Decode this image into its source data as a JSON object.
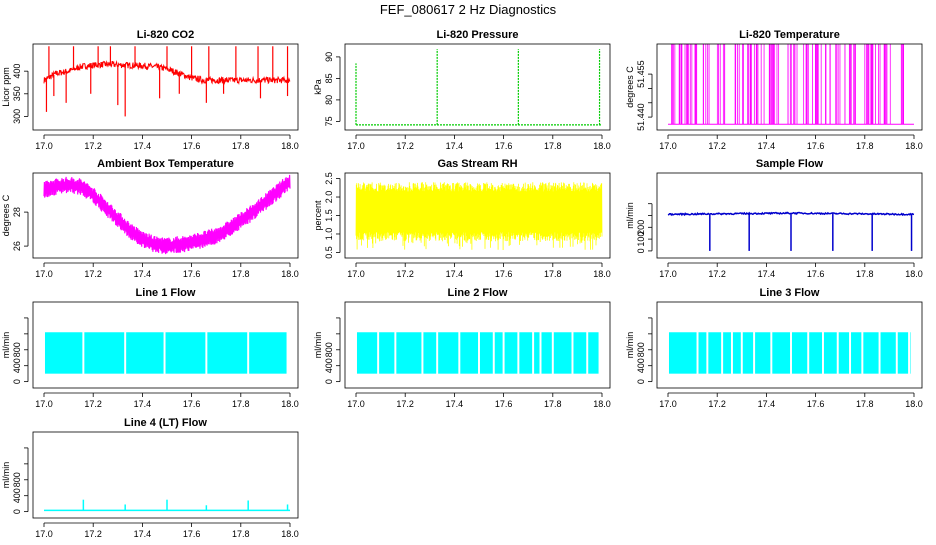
{
  "page_title": "FEF_080617  2 Hz Diagnostics",
  "chart_data": [
    {
      "id": "li820-co2",
      "type": "line",
      "title": "Li-820 CO2",
      "xlabel": "",
      "ylabel": "Licor ppm",
      "xlim": [
        17.0,
        18.0
      ],
      "xticks": [
        "17.0",
        "17.2",
        "17.4",
        "17.6",
        "17.8",
        "18.0"
      ],
      "ylim": [
        270,
        460
      ],
      "yticks": [
        "300",
        "350",
        "400"
      ],
      "color": "#ff0000",
      "series": [
        {
          "x": [
            17.0,
            17.05,
            17.1,
            17.15,
            17.2,
            17.25,
            17.3,
            17.35,
            17.4,
            17.45,
            17.5,
            17.55,
            17.6,
            17.65,
            17.7,
            17.8,
            17.9,
            18.0
          ],
          "values": [
            380,
            395,
            400,
            410,
            413,
            415,
            414,
            413,
            412,
            410,
            405,
            395,
            385,
            380,
            380,
            380,
            380,
            380
          ]
        }
      ],
      "spike_x": [
        17.02,
        17.12,
        17.22,
        17.27,
        17.37,
        17.5,
        17.6,
        17.67,
        17.78,
        17.87,
        17.93,
        17.99
      ],
      "spike_to": 455,
      "dip_x": [
        17.01,
        17.04,
        17.09,
        17.19,
        17.3,
        17.33,
        17.47,
        17.55,
        17.66,
        17.73,
        17.88,
        17.99
      ],
      "dip_to": [
        310,
        345,
        330,
        350,
        325,
        300,
        340,
        350,
        330,
        350,
        340,
        345
      ]
    },
    {
      "id": "li820-pressure",
      "type": "line",
      "title": "Li-820 Pressure",
      "xlabel": "",
      "ylabel": "kPa",
      "xlim": [
        17.0,
        18.0
      ],
      "xticks": [
        "17.0",
        "17.2",
        "17.4",
        "17.6",
        "17.8",
        "18.0"
      ],
      "ylim": [
        73,
        93
      ],
      "yticks": [
        "75",
        "80",
        "85",
        "90"
      ],
      "color": "#00cc00",
      "series": [
        {
          "x": [
            17.0,
            18.0
          ],
          "values": [
            74.2,
            74.2
          ]
        }
      ],
      "spike_x": [
        17.0,
        17.33,
        17.66,
        17.99
      ],
      "spike_to": [
        88.5,
        91.8,
        91.8,
        91.8
      ]
    },
    {
      "id": "li820-temperature",
      "type": "line",
      "title": "Li-820 Temperature",
      "xlabel": "",
      "ylabel": "degrees C",
      "xlim": [
        17.0,
        18.0
      ],
      "xticks": [
        "17.0",
        "17.2",
        "17.4",
        "17.6",
        "17.8",
        "18.0"
      ],
      "ylim": [
        51.4355,
        51.4655
      ],
      "yticks": [
        "51.440",
        "51.445",
        "51.450",
        "51.455"
      ],
      "ytick_labels_shown": [
        "51.440",
        "",
        "",
        "51.455"
      ],
      "color": "#ff00ff",
      "baseline": 51.4375,
      "top": 51.4655,
      "toggle_segments": [
        [
          17.01,
          17.17
        ],
        [
          17.2,
          17.24
        ],
        [
          17.27,
          17.34
        ],
        [
          17.35,
          17.45
        ],
        [
          17.48,
          17.53
        ],
        [
          17.55,
          17.66
        ],
        [
          17.68,
          17.77
        ],
        [
          17.8,
          17.92
        ],
        [
          17.94,
          17.97
        ]
      ]
    },
    {
      "id": "ambient-box-temperature",
      "type": "line",
      "title": "Ambient Box Temperature",
      "xlabel": "",
      "ylabel": "degrees C",
      "xlim": [
        17.0,
        18.0
      ],
      "xticks": [
        "17.0",
        "17.2",
        "17.4",
        "17.6",
        "17.8",
        "18.0"
      ],
      "ylim": [
        25.3,
        30.3
      ],
      "yticks": [
        "26",
        "28"
      ],
      "ytick_labels_shown": [
        "26",
        "28"
      ],
      "extra_ytick": "29",
      "color": "#ff00ff",
      "series": [
        {
          "x": [
            17.0,
            17.05,
            17.1,
            17.15,
            17.2,
            17.25,
            17.3,
            17.35,
            17.4,
            17.45,
            17.5,
            17.55,
            17.6,
            17.65,
            17.7,
            17.75,
            17.8,
            17.85,
            17.9,
            17.95,
            18.0
          ],
          "values": [
            29.3,
            29.5,
            29.6,
            29.5,
            29.0,
            28.3,
            27.6,
            26.9,
            26.4,
            26.1,
            26.0,
            26.1,
            26.2,
            26.4,
            26.6,
            27.0,
            27.5,
            28.0,
            28.6,
            29.2,
            29.8
          ]
        }
      ],
      "band": 0.5
    },
    {
      "id": "gas-stream-rh",
      "type": "line",
      "title": "Gas Stream RH",
      "xlabel": "",
      "ylabel": "percent",
      "xlim": [
        17.0,
        18.0
      ],
      "xticks": [
        "17.0",
        "17.2",
        "17.4",
        "17.6",
        "17.8",
        "18.0"
      ],
      "ylim": [
        0.35,
        2.65
      ],
      "yticks": [
        "0.5",
        "1.0",
        "1.5",
        "2.0",
        "2.5"
      ],
      "color": "#ffff00",
      "band_low": 0.8,
      "band_high": 2.4
    },
    {
      "id": "sample-flow",
      "type": "line",
      "title": "Sample Flow",
      "xlabel": "",
      "ylabel": "ml/min",
      "xlim": [
        17.0,
        18.0
      ],
      "xticks": [
        "17.0",
        "17.2",
        "17.4",
        "17.6",
        "17.8",
        "18.0"
      ],
      "ylim": [
        -30,
        330
      ],
      "yticks": [
        "0",
        "50",
        "100",
        "150",
        "200"
      ],
      "ytick_labels_shown": [
        "0",
        "100",
        "200"
      ],
      "color": "#0000cc",
      "series": [
        {
          "x": [
            17.0,
            17.5,
            18.0
          ],
          "values": [
            155,
            160,
            155
          ]
        }
      ],
      "dip_x": [
        17.17,
        17.33,
        17.5,
        17.67,
        17.83,
        17.99
      ],
      "dip_to": 0
    },
    {
      "id": "line1-flow",
      "type": "line",
      "title": "Line 1 Flow",
      "xlabel": "",
      "ylabel": "ml/min",
      "xlim": [
        17.0,
        18.0
      ],
      "xticks": [
        "17.0",
        "17.2",
        "17.4",
        "17.6",
        "17.8",
        "18.0"
      ],
      "ylim": [
        -80,
        1000
      ],
      "yticks": [
        "0",
        "200",
        "400",
        "600",
        "800"
      ],
      "ytick_labels_shown": [
        "0",
        "400",
        "800"
      ],
      "color": "#00ffff",
      "band_low": 100,
      "band_high": 620,
      "gaps_x": [
        17.16,
        17.33,
        17.49,
        17.66,
        17.83
      ]
    },
    {
      "id": "line2-flow",
      "type": "line",
      "title": "Line 2 Flow",
      "xlabel": "",
      "ylabel": "ml/min",
      "xlim": [
        17.0,
        18.0
      ],
      "xticks": [
        "17.0",
        "17.2",
        "17.4",
        "17.6",
        "17.8",
        "18.0"
      ],
      "ylim": [
        -80,
        1000
      ],
      "yticks": [
        "0",
        "200",
        "400",
        "600",
        "800"
      ],
      "ytick_labels_shown": [
        "0",
        "400",
        "800"
      ],
      "color": "#00ffff",
      "band_low": 100,
      "band_high": 620,
      "gaps_x": [
        17.09,
        17.16,
        17.27,
        17.33,
        17.42,
        17.5,
        17.56,
        17.6,
        17.66,
        17.72,
        17.75,
        17.8,
        17.88,
        17.94
      ]
    },
    {
      "id": "line3-flow",
      "type": "line",
      "title": "Line 3 Flow",
      "xlabel": "",
      "ylabel": "ml/min",
      "xlim": [
        17.0,
        18.0
      ],
      "xticks": [
        "17.0",
        "17.2",
        "17.4",
        "17.6",
        "17.8",
        "18.0"
      ],
      "ylim": [
        -80,
        1000
      ],
      "yticks": [
        "0",
        "200",
        "400",
        "600",
        "800"
      ],
      "ytick_labels_shown": [
        "0",
        "400",
        "800"
      ],
      "color": "#00ffff",
      "band_low": 100,
      "band_high": 620,
      "gaps_x": [
        17.12,
        17.16,
        17.22,
        17.26,
        17.3,
        17.35,
        17.42,
        17.5,
        17.57,
        17.63,
        17.69,
        17.74,
        17.79,
        17.86,
        17.93,
        17.98
      ]
    },
    {
      "id": "line4-flow",
      "type": "line",
      "title": "Line 4 (LT) Flow",
      "xlabel": "",
      "ylabel": "ml/min",
      "xlim": [
        17.0,
        18.0
      ],
      "xticks": [
        "17.0",
        "17.2",
        "17.4",
        "17.6",
        "17.8",
        "18.0"
      ],
      "ylim": [
        -80,
        1000
      ],
      "yticks": [
        "0",
        "200",
        "400",
        "600",
        "800"
      ],
      "ytick_labels_shown": [
        "0",
        "400",
        "800"
      ],
      "color": "#00ffff",
      "series": [
        {
          "x": [
            17.0,
            18.0
          ],
          "values": [
            15,
            15
          ]
        }
      ],
      "spike_x": [
        17.16,
        17.33,
        17.5,
        17.66,
        17.83,
        17.99
      ],
      "spike_to": [
        150,
        90,
        150,
        80,
        140,
        90
      ]
    }
  ]
}
